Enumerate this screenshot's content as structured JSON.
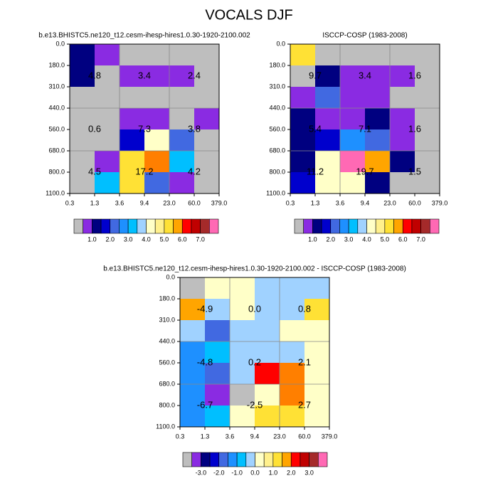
{
  "title": "VOCALS DJF",
  "chart_data": [
    {
      "type": "heatmap",
      "title": "b.e13.BHISTC5.ne120_t12.cesm-ihesp-hires1.0.30-1920-2100.002",
      "xticks": [
        "0.3",
        "1.3",
        "3.6",
        "9.4",
        "23.0",
        "60.0",
        "379.0"
      ],
      "yticks": [
        "0.0",
        "180.0",
        "310.0",
        "440.0",
        "560.0",
        "680.0",
        "800.0",
        "1100.0"
      ],
      "cells": [
        [
          "#000080",
          "#8a2be2",
          "#bebebe",
          "#bebebe",
          "#bebebe",
          "#bebebe"
        ],
        [
          "#000080",
          "#bebebe",
          "#8a2be2",
          "#8a2be2",
          "#8a2be2",
          "#bebebe"
        ],
        [
          "#bebebe",
          "#bebebe",
          "#bebebe",
          "#bebebe",
          "#bebebe",
          "#bebebe"
        ],
        [
          "#bebebe",
          "#bebebe",
          "#8a2be2",
          "#8a2be2",
          "#bebebe",
          "#8a2be2"
        ],
        [
          "#bebebe",
          "#bebebe",
          "#0000cd",
          "#ffffc8",
          "#4169e1",
          "#bebebe"
        ],
        [
          "#bebebe",
          "#8a2be2",
          "#ffe135",
          "#ff7f00",
          "#00bfff",
          "#bebebe"
        ],
        [
          "#bebebe",
          "#00bfff",
          "#ffe135",
          "#4169e1",
          "#8a2be2",
          "#bebebe"
        ]
      ],
      "annotations": [
        [
          "4.8",
          "3.4",
          "2.4"
        ],
        [
          "0.6",
          "7.3",
          "3.8"
        ],
        [
          "4.5",
          "17.2",
          "4.2"
        ]
      ],
      "colorbar": {
        "colors": [
          "#bebebe",
          "#8a2be2",
          "#000080",
          "#0000cd",
          "#4169e1",
          "#1e90ff",
          "#00bfff",
          "#a0d2ff",
          "#ffffc8",
          "#fff08c",
          "#ffe135",
          "#ffa500",
          "#ff0000",
          "#c00000",
          "#a52a2a",
          "#ff69b4"
        ],
        "clim": [
          0,
          8
        ],
        "ticks": [
          {
            "value": 1,
            "label": "1.0"
          },
          {
            "value": 2,
            "label": "2.0"
          },
          {
            "value": 3,
            "label": "3.0"
          },
          {
            "value": 4,
            "label": "4.0"
          },
          {
            "value": 5,
            "label": "5.0"
          },
          {
            "value": 6,
            "label": "6.0"
          },
          {
            "value": 7,
            "label": "7.0"
          }
        ]
      }
    },
    {
      "type": "heatmap",
      "title": "ISCCP-COSP (1983-2008)",
      "xticks": [
        "0.3",
        "1.3",
        "3.6",
        "9.4",
        "23.0",
        "60.0",
        "379.0"
      ],
      "yticks": [
        "0.0",
        "180.0",
        "310.0",
        "440.0",
        "560.0",
        "680.0",
        "800.0",
        "1100.0"
      ],
      "cells": [
        [
          "#ffe135",
          "#bebebe",
          "#bebebe",
          "#bebebe",
          "#bebebe",
          "#bebebe"
        ],
        [
          "#bebebe",
          "#000080",
          "#8a2be2",
          "#8a2be2",
          "#8a2be2",
          "#bebebe"
        ],
        [
          "#8a2be2",
          "#4169e1",
          "#8a2be2",
          "#8a2be2",
          "#bebebe",
          "#bebebe"
        ],
        [
          "#000080",
          "#8a2be2",
          "#8a2be2",
          "#000080",
          "#8a2be2",
          "#bebebe"
        ],
        [
          "#000080",
          "#0000cd",
          "#1e90ff",
          "#4169e1",
          "#8a2be2",
          "#bebebe"
        ],
        [
          "#000080",
          "#ffffc8",
          "#ff69b4",
          "#ffa500",
          "#000080",
          "#bebebe"
        ],
        [
          "#0000cd",
          "#ffffc8",
          "#ffffc8",
          "#000080",
          "#bebebe",
          "#bebebe"
        ]
      ],
      "annotations": [
        [
          "9.7",
          "3.4",
          "1.6"
        ],
        [
          "5.4",
          "7.1",
          "1.6"
        ],
        [
          "11.2",
          "19.7",
          "1.5"
        ]
      ],
      "colorbar": {
        "colors": [
          "#bebebe",
          "#8a2be2",
          "#000080",
          "#0000cd",
          "#4169e1",
          "#1e90ff",
          "#00bfff",
          "#a0d2ff",
          "#ffffc8",
          "#fff08c",
          "#ffe135",
          "#ffa500",
          "#ff0000",
          "#c00000",
          "#a52a2a",
          "#ff69b4"
        ],
        "clim": [
          0,
          8
        ],
        "ticks": [
          {
            "value": 1,
            "label": "1.0"
          },
          {
            "value": 2,
            "label": "2.0"
          },
          {
            "value": 3,
            "label": "3.0"
          },
          {
            "value": 4,
            "label": "4.0"
          },
          {
            "value": 5,
            "label": "5.0"
          },
          {
            "value": 6,
            "label": "6.0"
          },
          {
            "value": 7,
            "label": "7.0"
          }
        ]
      }
    },
    {
      "type": "heatmap",
      "title": "b.e13.BHISTC5.ne120_t12.cesm-ihesp-hires1.0.30-1920-2100.002 - ISCCP-COSP (1983-2008)",
      "xticks": [
        "0.3",
        "1.3",
        "3.6",
        "9.4",
        "23.0",
        "60.0",
        "379.0"
      ],
      "yticks": [
        "0.0",
        "180.0",
        "310.0",
        "440.0",
        "560.0",
        "680.0",
        "800.0",
        "1100.0"
      ],
      "cells": [
        [
          "#bebebe",
          "#ffffc8",
          "#ffffc8",
          "#a0d2ff",
          "#a0d2ff",
          "#a0d2ff"
        ],
        [
          "#ffa500",
          "#a0d2ff",
          "#ffffc8",
          "#a0d2ff",
          "#a0d2ff",
          "#ffe135"
        ],
        [
          "#a0d2ff",
          "#4169e1",
          "#a0d2ff",
          "#a0d2ff",
          "#ffffc8",
          "#ffffc8"
        ],
        [
          "#1e90ff",
          "#00bfff",
          "#a0d2ff",
          "#a0d2ff",
          "#a0d2ff",
          "#ffffc8"
        ],
        [
          "#1e90ff",
          "#4169e1",
          "#a0d2ff",
          "#ff0000",
          "#ff7f00",
          "#ffffc8"
        ],
        [
          "#1e90ff",
          "#8a2be2",
          "#bebebe",
          "#ffffc8",
          "#ff7f00",
          "#ffffc8"
        ],
        [
          "#1e90ff",
          "#00bfff",
          "#ffffc8",
          "#ffe135",
          "#ffe135",
          "#ffffc8"
        ]
      ],
      "annotations": [
        [
          "-4.9",
          "0.0",
          "0.8"
        ],
        [
          "-4.8",
          "0.2",
          "2.1"
        ],
        [
          "-6.7",
          "-2.5",
          "2.7"
        ]
      ],
      "colorbar": {
        "colors": [
          "#bebebe",
          "#8a2be2",
          "#000080",
          "#0000cd",
          "#4169e1",
          "#1e90ff",
          "#00bfff",
          "#a0d2ff",
          "#ffffc8",
          "#fff08c",
          "#ffe135",
          "#ffa500",
          "#ff0000",
          "#c00000",
          "#a52a2a",
          "#ff69b4"
        ],
        "clim": [
          -4,
          4
        ],
        "ticks": [
          {
            "value": -3,
            "label": "-3.0"
          },
          {
            "value": -2,
            "label": "-2.0"
          },
          {
            "value": -1,
            "label": "-1.0"
          },
          {
            "value": 0,
            "label": "0.0"
          },
          {
            "value": 1,
            "label": "1.0"
          },
          {
            "value": 2,
            "label": "2.0"
          },
          {
            "value": 3,
            "label": "3.0"
          }
        ]
      }
    }
  ]
}
